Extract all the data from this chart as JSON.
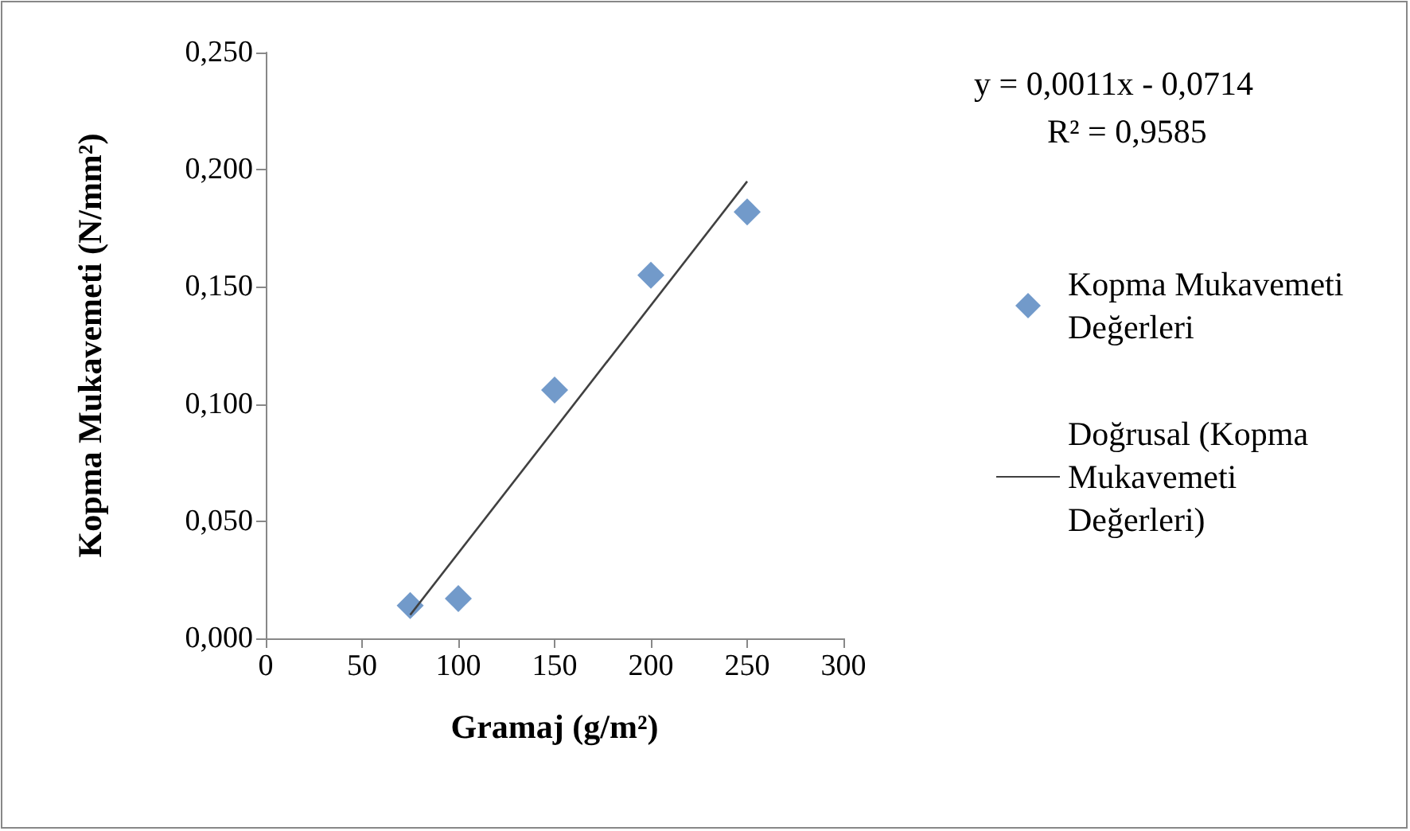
{
  "chart_data": {
    "type": "scatter",
    "xlabel": "Gramaj (g/m²)",
    "ylabel": "Kopma Mukavemeti (N/mm²)",
    "annotations": [
      "y = 0,0011x - 0,0714",
      "R² = 0,9585"
    ],
    "series": [
      {
        "name": "Kopma Mukavemeti Değerleri",
        "color": "#4f81bd",
        "x": [
          75,
          100,
          150,
          200,
          250
        ],
        "values": [
          0.014,
          0.017,
          0.106,
          0.155,
          0.182
        ],
        "marker": "diamond"
      },
      {
        "name": "Doğrusal (Kopma Mukavemeti Değerleri)",
        "type": "line",
        "color": "#404040",
        "x": [
          75,
          250
        ],
        "values": [
          0.01,
          0.195
        ],
        "marker": "none",
        "line_style": "solid"
      }
    ],
    "xlim": [
      0,
      300
    ],
    "xticks": [
      0,
      50,
      100,
      150,
      200,
      250,
      300
    ],
    "ylim": [
      0,
      0.25
    ],
    "yticks": [
      {
        "value": 0,
        "label": "0,000"
      },
      {
        "value": 0.05,
        "label": "0,050"
      },
      {
        "value": 0.1,
        "label": "0,100"
      },
      {
        "value": 0.15,
        "label": "0,150"
      },
      {
        "value": 0.2,
        "label": "0,200"
      },
      {
        "value": 0.25,
        "label": "0,250"
      }
    ],
    "grid": false,
    "legend": "right"
  }
}
